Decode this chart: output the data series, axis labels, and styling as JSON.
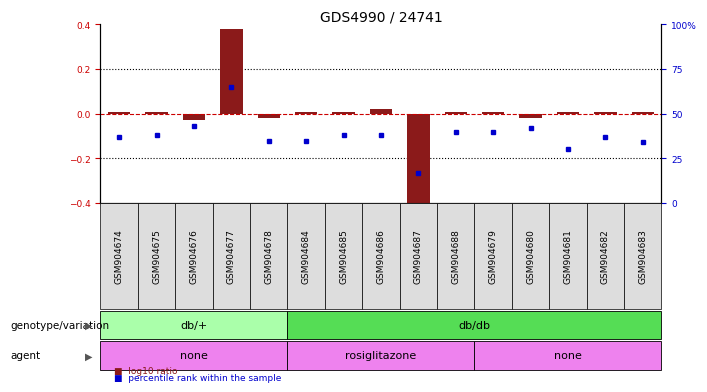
{
  "title": "GDS4990 / 24741",
  "samples": [
    "GSM904674",
    "GSM904675",
    "GSM904676",
    "GSM904677",
    "GSM904678",
    "GSM904684",
    "GSM904685",
    "GSM904686",
    "GSM904687",
    "GSM904688",
    "GSM904679",
    "GSM904680",
    "GSM904681",
    "GSM904682",
    "GSM904683"
  ],
  "log10_ratio": [
    0.01,
    0.01,
    -0.03,
    0.38,
    -0.02,
    0.01,
    0.01,
    0.02,
    -0.41,
    0.01,
    0.01,
    -0.02,
    0.01,
    0.01,
    0.01
  ],
  "percentile_rank": [
    37,
    38,
    43,
    65,
    35,
    35,
    38,
    38,
    17,
    40,
    40,
    42,
    30,
    37,
    34
  ],
  "ylim_left": [
    -0.4,
    0.4
  ],
  "ylim_right": [
    0,
    100
  ],
  "bar_color": "#8B1A1A",
  "dot_color": "#0000CD",
  "dashed_line_color": "#CC0000",
  "left_tick_color": "#CC0000",
  "right_tick_color": "#0000CD",
  "genotype_groups": [
    {
      "label": "db/+",
      "start": 0,
      "end": 5,
      "color": "#AAFFAA"
    },
    {
      "label": "db/db",
      "start": 5,
      "end": 15,
      "color": "#55DD55"
    }
  ],
  "agent_groups": [
    {
      "label": "none",
      "start": 0,
      "end": 5,
      "color": "#EE82EE"
    },
    {
      "label": "rosiglitazone",
      "start": 5,
      "end": 10,
      "color": "#EE82EE"
    },
    {
      "label": "none",
      "start": 10,
      "end": 15,
      "color": "#EE82EE"
    }
  ],
  "legend_items": [
    {
      "color": "#8B1A1A",
      "label": "log10 ratio"
    },
    {
      "color": "#0000CD",
      "label": "percentile rank within the sample"
    }
  ],
  "tick_fontsize": 6.5,
  "title_fontsize": 10,
  "label_fontsize": 7.5,
  "group_fontsize": 8,
  "background_color": "#ffffff"
}
